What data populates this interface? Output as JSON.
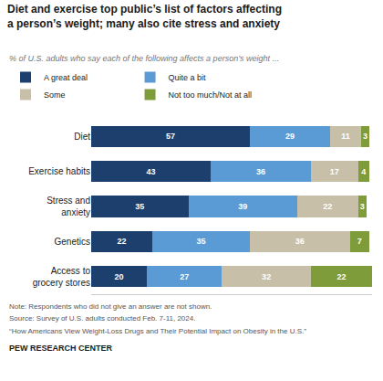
{
  "chart_data": {
    "type": "bar",
    "orientation": "horizontal",
    "stacked": true,
    "data_labels": true,
    "tick_labels": "y",
    "grid": false,
    "legend": "top",
    "title": "Diet and exercise top public’s list of factors affecting\na person’s weight; many also cite stress and anxiety",
    "subtitle": "% of U.S. adults who say each of the following affects a person’s weight ...",
    "categories": [
      "Diet",
      "Exercise habits",
      "Stress and\nanxiety",
      "Genetics",
      "Access to\ngrocery stores"
    ],
    "series": [
      {
        "name": "A great deal",
        "color": "#1c3f6e",
        "values": [
          57,
          43,
          35,
          22,
          20
        ]
      },
      {
        "name": "Quite a bit",
        "color": "#5b9bd5",
        "values": [
          29,
          36,
          39,
          35,
          27
        ]
      },
      {
        "name": "Some",
        "color": "#c8bfa8",
        "values": [
          11,
          17,
          22,
          36,
          32
        ]
      },
      {
        "name": "Not too much/Not at all",
        "color": "#7f9c3a",
        "values": [
          3,
          4,
          3,
          7,
          22
        ]
      }
    ],
    "xlim": [
      0,
      101
    ],
    "annotations": [
      "Note: Respondents who did not give an answer are not shown.",
      "Source: Survey of U.S. adults conducted Feb. 7-11, 2024.",
      "“How Americans View Weight-Loss Drugs and Their Potential Impact on Obesity in the U.S.”",
      "PEW RESEARCH CENTER"
    ]
  }
}
